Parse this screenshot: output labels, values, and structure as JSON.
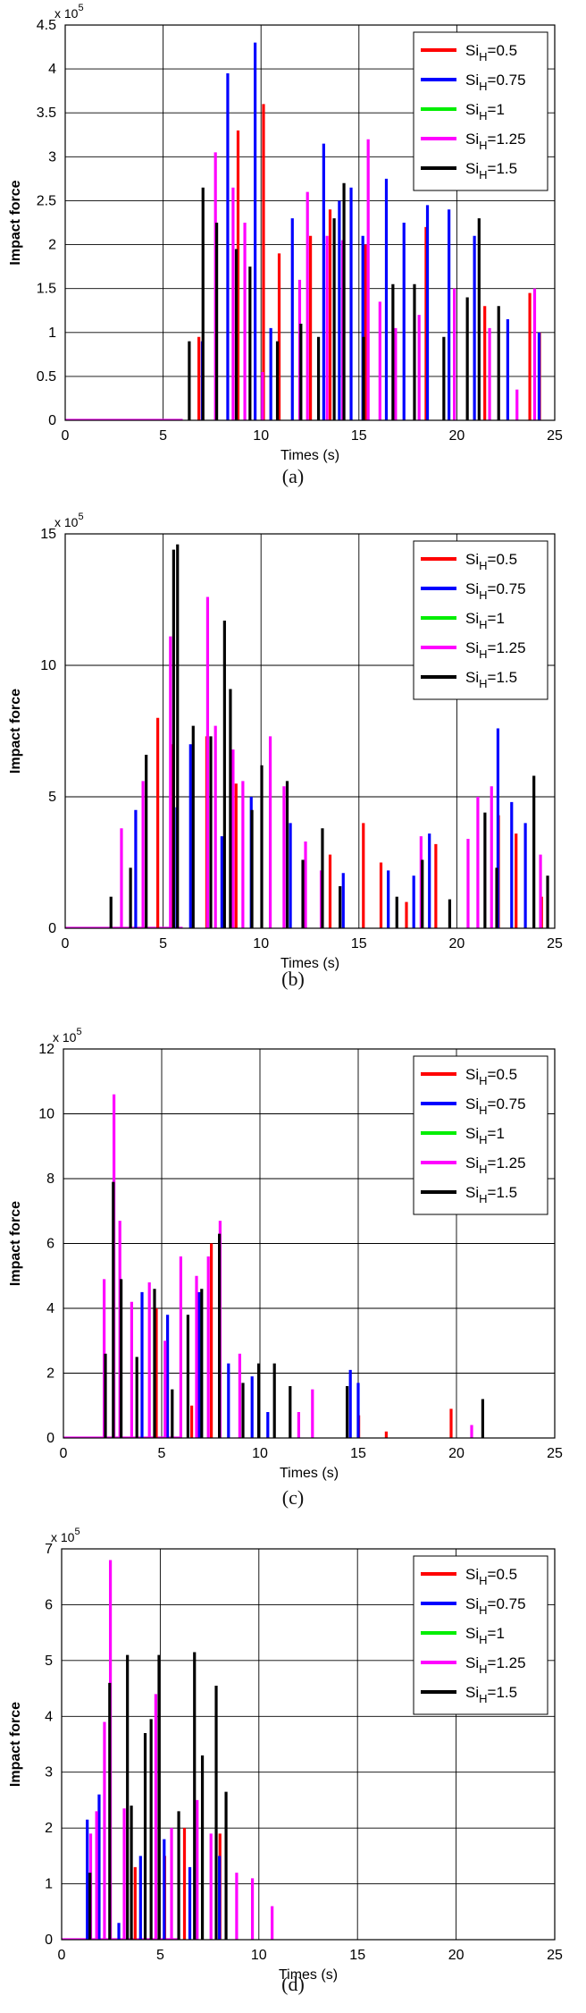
{
  "chart_data": [
    {
      "type": "bar",
      "caption": "(a)",
      "ylabel": "Impact force",
      "xlabel": "Times (s)",
      "exponent": "x 10",
      "exponent_power": "5",
      "xlim": [
        0,
        25
      ],
      "ylim": [
        0,
        4.5
      ],
      "xticks": [
        "0",
        "5",
        "10",
        "15",
        "20",
        "25"
      ],
      "yticks": [
        "0",
        "0.5",
        "1",
        "1.5",
        "2",
        "2.5",
        "3",
        "3.5",
        "4",
        "4.5"
      ],
      "grid": true,
      "legend_position": "top-right",
      "series": [
        {
          "name": "Si_H=0.5",
          "color": "#ff0000",
          "points": [
            [
              6.9,
              0.95
            ],
            [
              8.9,
              3.3
            ],
            [
              10.2,
              3.6
            ],
            [
              11.0,
              1.9
            ],
            [
              12.6,
              2.1
            ],
            [
              13.6,
              2.4
            ],
            [
              15.4,
              2.0
            ],
            [
              18.5,
              2.2
            ],
            [
              21.5,
              1.3
            ],
            [
              23.8,
              1.45
            ],
            [
              24.3,
              1.0
            ]
          ]
        },
        {
          "name": "Si_H=0.75",
          "color": "#0000ff",
          "points": [
            [
              7.0,
              0.9
            ],
            [
              8.3,
              3.95
            ],
            [
              9.7,
              4.3
            ],
            [
              10.5,
              1.05
            ],
            [
              11.6,
              2.3
            ],
            [
              13.2,
              3.15
            ],
            [
              14.0,
              2.5
            ],
            [
              14.6,
              2.65
            ],
            [
              15.2,
              2.1
            ],
            [
              16.4,
              2.75
            ],
            [
              17.3,
              2.25
            ],
            [
              18.5,
              2.45
            ],
            [
              19.6,
              2.4
            ],
            [
              20.9,
              2.1
            ],
            [
              22.6,
              1.15
            ],
            [
              24.2,
              1.0
            ]
          ]
        },
        {
          "name": "Si_H=1",
          "color": "#00ee00",
          "points": []
        },
        {
          "name": "Si_H=1.25",
          "color": "#ff00ff",
          "points": [
            [
              7.6,
              3.05
            ],
            [
              8.5,
              2.65
            ],
            [
              9.1,
              2.25
            ],
            [
              10.0,
              0.55
            ],
            [
              11.9,
              1.6
            ],
            [
              12.3,
              2.6
            ],
            [
              13.3,
              2.1
            ],
            [
              14.1,
              2.05
            ],
            [
              15.4,
              3.2
            ],
            [
              16.0,
              1.35
            ],
            [
              16.8,
              1.05
            ],
            [
              18.0,
              1.2
            ],
            [
              19.8,
              1.5
            ],
            [
              21.6,
              1.05
            ],
            [
              23.0,
              0.35
            ],
            [
              23.9,
              1.5
            ]
          ]
        },
        {
          "name": "Si_H=1.5",
          "color": "#000000",
          "points": [
            [
              6.3,
              0.9
            ],
            [
              7.0,
              2.65
            ],
            [
              7.7,
              2.25
            ],
            [
              8.7,
              1.95
            ],
            [
              9.4,
              1.75
            ],
            [
              10.8,
              0.9
            ],
            [
              12.0,
              1.1
            ],
            [
              12.9,
              0.95
            ],
            [
              13.7,
              2.3
            ],
            [
              14.2,
              2.7
            ],
            [
              15.2,
              0.95
            ],
            [
              16.7,
              1.55
            ],
            [
              17.8,
              1.55
            ],
            [
              19.3,
              0.95
            ],
            [
              20.5,
              1.4
            ],
            [
              21.1,
              2.3
            ],
            [
              22.1,
              1.3
            ]
          ]
        }
      ]
    },
    {
      "type": "bar",
      "caption": "(b)",
      "ylabel": "Impact force",
      "xlabel": "Times (s)",
      "exponent": "x 10",
      "exponent_power": "5",
      "xlim": [
        0,
        25
      ],
      "ylim": [
        0,
        15
      ],
      "xticks": [
        "0",
        "5",
        "10",
        "15",
        "20",
        "25"
      ],
      "yticks": [
        "0",
        "5",
        "10",
        "15"
      ],
      "grid": true,
      "legend_position": "top-right",
      "series": [
        {
          "name": "Si_H=0.5",
          "color": "#ff0000",
          "points": [
            [
              4.8,
              8.0
            ],
            [
              5.5,
              7.0
            ],
            [
              7.3,
              7.3
            ],
            [
              8.8,
              5.5
            ],
            [
              13.6,
              2.8
            ],
            [
              15.3,
              4.0
            ],
            [
              16.2,
              2.5
            ],
            [
              17.5,
              1.0
            ],
            [
              19.0,
              3.2
            ],
            [
              22.2,
              4.3
            ],
            [
              23.1,
              3.6
            ],
            [
              24.4,
              1.2
            ]
          ]
        },
        {
          "name": "Si_H=0.75",
          "color": "#0000ff",
          "points": [
            [
              3.6,
              4.5
            ],
            [
              5.7,
              4.6
            ],
            [
              6.4,
              7.0
            ],
            [
              8.0,
              3.5
            ],
            [
              9.5,
              5.0
            ],
            [
              11.5,
              4.0
            ],
            [
              14.2,
              2.1
            ],
            [
              16.5,
              2.2
            ],
            [
              17.8,
              2.0
            ],
            [
              18.6,
              3.6
            ],
            [
              22.1,
              7.6
            ],
            [
              22.8,
              4.8
            ],
            [
              23.5,
              4.0
            ]
          ]
        },
        {
          "name": "Si_H=1",
          "color": "#00ee00",
          "points": []
        },
        {
          "name": "Si_H=1.25",
          "color": "#ff00ff",
          "points": [
            [
              2.8,
              3.8
            ],
            [
              3.9,
              5.6
            ],
            [
              5.3,
              11.1
            ],
            [
              7.2,
              12.6
            ],
            [
              7.6,
              7.7
            ],
            [
              8.5,
              6.8
            ],
            [
              9.0,
              5.6
            ],
            [
              10.4,
              7.3
            ],
            [
              11.1,
              5.4
            ],
            [
              12.2,
              3.3
            ],
            [
              13.0,
              2.2
            ],
            [
              18.1,
              3.5
            ],
            [
              20.5,
              3.4
            ],
            [
              21.0,
              5.0
            ],
            [
              21.7,
              5.4
            ],
            [
              24.2,
              2.8
            ]
          ]
        },
        {
          "name": "Si_H=1.5",
          "color": "#000000",
          "points": [
            [
              2.3,
              1.2
            ],
            [
              3.3,
              2.3
            ],
            [
              4.1,
              6.6
            ],
            [
              5.5,
              14.4
            ],
            [
              5.7,
              14.6
            ],
            [
              6.5,
              7.7
            ],
            [
              7.4,
              7.3
            ],
            [
              8.1,
              11.7
            ],
            [
              8.4,
              9.1
            ],
            [
              9.5,
              4.5
            ],
            [
              10.0,
              6.2
            ],
            [
              11.3,
              5.6
            ],
            [
              12.1,
              2.6
            ],
            [
              13.1,
              3.8
            ],
            [
              14.0,
              1.6
            ],
            [
              16.9,
              1.2
            ],
            [
              18.2,
              2.6
            ],
            [
              19.6,
              1.1
            ],
            [
              21.4,
              4.4
            ],
            [
              22.0,
              2.3
            ],
            [
              23.9,
              5.8
            ],
            [
              24.6,
              2.0
            ]
          ]
        }
      ]
    },
    {
      "type": "bar",
      "caption": "(c)",
      "ylabel": "Impact force",
      "xlabel": "Times (s)",
      "exponent": "x 10",
      "exponent_power": "5",
      "xlim": [
        0,
        25
      ],
      "ylim": [
        0,
        12
      ],
      "xticks": [
        "0",
        "5",
        "10",
        "15",
        "20",
        "25"
      ],
      "yticks": [
        "0",
        "2",
        "4",
        "6",
        "8",
        "10",
        "12"
      ],
      "grid": true,
      "legend_position": "top-right",
      "series": [
        {
          "name": "Si_H=0.5",
          "color": "#ff0000",
          "points": [
            [
              3.0,
              4.6
            ],
            [
              4.8,
              4.0
            ],
            [
              6.6,
              1.0
            ],
            [
              7.6,
              6.0
            ],
            [
              15.1,
              0.7
            ],
            [
              16.5,
              0.2
            ],
            [
              19.8,
              0.9
            ]
          ]
        },
        {
          "name": "Si_H=0.75",
          "color": "#0000ff",
          "points": [
            [
              4.0,
              4.5
            ],
            [
              5.3,
              3.8
            ],
            [
              6.9,
              4.5
            ],
            [
              8.4,
              2.3
            ],
            [
              9.6,
              1.9
            ],
            [
              10.4,
              0.8
            ],
            [
              14.6,
              2.1
            ],
            [
              15.0,
              1.7
            ]
          ]
        },
        {
          "name": "Si_H=1",
          "color": "#00ee00",
          "points": []
        },
        {
          "name": "Si_H=1.25",
          "color": "#ff00ff",
          "points": [
            [
              2.0,
              4.9
            ],
            [
              2.5,
              10.6
            ],
            [
              2.8,
              6.7
            ],
            [
              3.4,
              4.2
            ],
            [
              4.3,
              4.8
            ],
            [
              5.1,
              3.0
            ],
            [
              5.9,
              5.6
            ],
            [
              6.7,
              5.0
            ],
            [
              7.3,
              5.6
            ],
            [
              7.9,
              6.7
            ],
            [
              8.9,
              2.6
            ],
            [
              11.9,
              0.8
            ],
            [
              12.6,
              1.5
            ],
            [
              20.7,
              0.4
            ]
          ]
        },
        {
          "name": "Si_H=1.5",
          "color": "#000000",
          "points": [
            [
              2.1,
              2.6
            ],
            [
              2.5,
              7.9
            ],
            [
              2.9,
              4.9
            ],
            [
              3.7,
              2.5
            ],
            [
              4.6,
              4.6
            ],
            [
              5.5,
              1.5
            ],
            [
              6.3,
              3.8
            ],
            [
              7.0,
              4.6
            ],
            [
              7.9,
              6.3
            ],
            [
              9.1,
              1.7
            ],
            [
              9.9,
              2.3
            ],
            [
              10.7,
              2.3
            ],
            [
              11.5,
              1.6
            ],
            [
              14.4,
              1.6
            ],
            [
              21.3,
              1.2
            ]
          ]
        }
      ]
    },
    {
      "type": "bar",
      "caption": "(d)",
      "ylabel": "Impact force",
      "xlabel": "Times (s)",
      "exponent": "x 10",
      "exponent_power": "5",
      "xlim": [
        0,
        25
      ],
      "ylim": [
        0,
        7
      ],
      "xticks": [
        "0",
        "5",
        "10",
        "15",
        "20",
        "25"
      ],
      "yticks": [
        "0",
        "1",
        "2",
        "3",
        "4",
        "5",
        "6",
        "7"
      ],
      "grid": true,
      "legend_position": "top-right",
      "series": [
        {
          "name": "Si_H=0.5",
          "color": "#ff0000",
          "points": [
            [
              3.8,
              1.3
            ],
            [
              5.3,
              1.5
            ],
            [
              6.3,
              2.0
            ],
            [
              8.1,
              1.9
            ]
          ]
        },
        {
          "name": "Si_H=0.75",
          "color": "#0000ff",
          "points": [
            [
              1.3,
              2.15
            ],
            [
              1.9,
              2.6
            ],
            [
              2.9,
              0.3
            ],
            [
              4.0,
              1.5
            ],
            [
              5.2,
              1.8
            ],
            [
              6.5,
              1.3
            ],
            [
              8.0,
              1.5
            ]
          ]
        },
        {
          "name": "Si_H=1",
          "color": "#00ee00",
          "points": []
        },
        {
          "name": "Si_H=1.25",
          "color": "#ff00ff",
          "points": [
            [
              1.4,
              1.9
            ],
            [
              1.7,
              2.3
            ],
            [
              2.1,
              3.9
            ],
            [
              2.4,
              6.8
            ],
            [
              3.1,
              2.35
            ],
            [
              4.7,
              4.4
            ],
            [
              5.5,
              2.0
            ],
            [
              6.8,
              2.5
            ],
            [
              7.5,
              1.9
            ],
            [
              8.8,
              1.2
            ],
            [
              9.6,
              1.1
            ],
            [
              10.6,
              0.6
            ]
          ]
        },
        {
          "name": "Si_H=1.5",
          "color": "#000000",
          "points": [
            [
              1.4,
              1.2
            ],
            [
              2.4,
              4.6
            ],
            [
              3.3,
              5.1
            ],
            [
              3.5,
              2.4
            ],
            [
              4.2,
              3.7
            ],
            [
              4.5,
              3.95
            ],
            [
              4.9,
              5.1
            ],
            [
              5.9,
              2.3
            ],
            [
              6.7,
              5.15
            ],
            [
              7.1,
              3.3
            ],
            [
              7.8,
              4.55
            ],
            [
              8.3,
              2.65
            ]
          ]
        }
      ]
    }
  ]
}
